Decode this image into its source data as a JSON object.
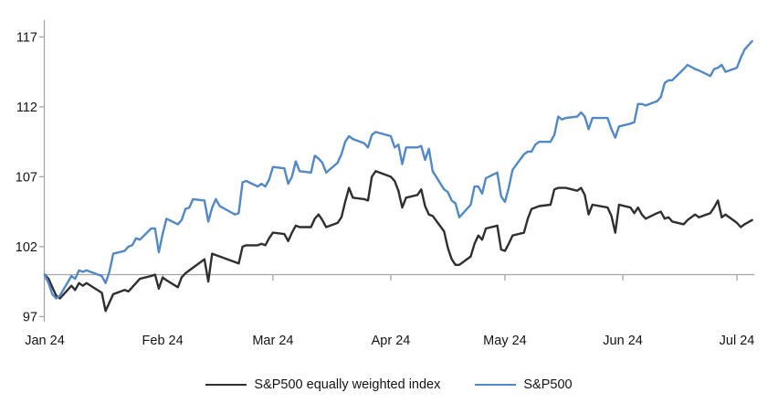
{
  "chart_data": {
    "type": "line",
    "legend_position": "bottom",
    "x_axis": {
      "tick_labels": [
        "Jan 24",
        "Feb 24",
        "Mar 24",
        "Apr 24",
        "May 24",
        "Jun 24",
        "Jul 24"
      ],
      "tick_dates": [
        "2024-01-01",
        "2024-02-01",
        "2024-03-01",
        "2024-04-01",
        "2024-05-01",
        "2024-06-01",
        "2024-07-01"
      ]
    },
    "y_axis": {
      "ticks": [
        97,
        102,
        107,
        112,
        117
      ],
      "min": 97,
      "max": 118,
      "baseline": 100
    },
    "dates": [
      "2024-01-01",
      "2024-01-02",
      "2024-01-03",
      "2024-01-04",
      "2024-01-05",
      "2024-01-08",
      "2024-01-09",
      "2024-01-10",
      "2024-01-11",
      "2024-01-12",
      "2024-01-16",
      "2024-01-17",
      "2024-01-18",
      "2024-01-19",
      "2024-01-22",
      "2024-01-23",
      "2024-01-24",
      "2024-01-25",
      "2024-01-26",
      "2024-01-29",
      "2024-01-30",
      "2024-01-31",
      "2024-02-01",
      "2024-02-02",
      "2024-02-05",
      "2024-02-06",
      "2024-02-07",
      "2024-02-08",
      "2024-02-09",
      "2024-02-12",
      "2024-02-13",
      "2024-02-14",
      "2024-02-15",
      "2024-02-16",
      "2024-02-20",
      "2024-02-21",
      "2024-02-22",
      "2024-02-23",
      "2024-02-26",
      "2024-02-27",
      "2024-02-28",
      "2024-02-29",
      "2024-03-01",
      "2024-03-04",
      "2024-03-05",
      "2024-03-06",
      "2024-03-07",
      "2024-03-08",
      "2024-03-11",
      "2024-03-12",
      "2024-03-13",
      "2024-03-14",
      "2024-03-15",
      "2024-03-18",
      "2024-03-19",
      "2024-03-20",
      "2024-03-21",
      "2024-03-22",
      "2024-03-25",
      "2024-03-26",
      "2024-03-27",
      "2024-03-28",
      "2024-04-01",
      "2024-04-02",
      "2024-04-03",
      "2024-04-04",
      "2024-04-05",
      "2024-04-08",
      "2024-04-09",
      "2024-04-10",
      "2024-04-11",
      "2024-04-12",
      "2024-04-15",
      "2024-04-16",
      "2024-04-17",
      "2024-04-18",
      "2024-04-19",
      "2024-04-22",
      "2024-04-23",
      "2024-04-24",
      "2024-04-25",
      "2024-04-26",
      "2024-04-29",
      "2024-04-30",
      "2024-05-01",
      "2024-05-02",
      "2024-05-03",
      "2024-05-06",
      "2024-05-07",
      "2024-05-08",
      "2024-05-09",
      "2024-05-10",
      "2024-05-13",
      "2024-05-14",
      "2024-05-15",
      "2024-05-16",
      "2024-05-17",
      "2024-05-20",
      "2024-05-21",
      "2024-05-22",
      "2024-05-23",
      "2024-05-24",
      "2024-05-28",
      "2024-05-29",
      "2024-05-30",
      "2024-05-31",
      "2024-06-03",
      "2024-06-04",
      "2024-06-05",
      "2024-06-06",
      "2024-06-07",
      "2024-06-10",
      "2024-06-11",
      "2024-06-12",
      "2024-06-13",
      "2024-06-14",
      "2024-06-17",
      "2024-06-18",
      "2024-06-20",
      "2024-06-21",
      "2024-06-24",
      "2024-06-25",
      "2024-06-26",
      "2024-06-27",
      "2024-06-28",
      "2024-07-01",
      "2024-07-02",
      "2024-07-03",
      "2024-07-05"
    ],
    "series": [
      {
        "name": "S&P500 equally weighted index",
        "color": "#2f2f2f",
        "values": [
          100.0,
          99.7,
          99.1,
          98.5,
          98.3,
          99.2,
          98.9,
          99.4,
          99.2,
          99.4,
          98.7,
          97.4,
          98.0,
          98.6,
          98.9,
          98.8,
          99.1,
          99.4,
          99.7,
          99.9,
          100.0,
          99.0,
          99.8,
          99.6,
          99.1,
          99.8,
          100.1,
          100.3,
          100.5,
          101.1,
          99.5,
          101.5,
          101.4,
          101.3,
          100.9,
          100.8,
          102.0,
          102.1,
          102.1,
          102.2,
          102.1,
          102.6,
          103.0,
          102.9,
          102.4,
          103.0,
          103.5,
          103.4,
          103.4,
          104.0,
          104.3,
          103.9,
          103.4,
          103.7,
          104.1,
          105.2,
          106.2,
          105.5,
          105.4,
          105.3,
          107.0,
          107.4,
          107.0,
          106.7,
          106.0,
          104.8,
          105.5,
          105.7,
          106.1,
          104.9,
          104.3,
          104.2,
          103.1,
          101.9,
          101.1,
          100.7,
          100.7,
          101.3,
          102.2,
          102.8,
          102.5,
          103.3,
          103.5,
          101.8,
          101.7,
          102.2,
          102.8,
          103.0,
          104.0,
          104.7,
          104.8,
          104.9,
          105.0,
          106.1,
          106.2,
          106.2,
          106.2,
          106.0,
          106.2,
          105.7,
          104.3,
          105.0,
          104.8,
          104.2,
          103.0,
          105.0,
          104.8,
          104.4,
          104.8,
          104.3,
          104.0,
          104.4,
          104.5,
          104.0,
          104.1,
          103.8,
          103.6,
          103.9,
          104.3,
          104.1,
          104.4,
          104.8,
          105.3,
          104.1,
          104.3,
          103.7,
          103.4,
          103.6,
          103.9
        ]
      },
      {
        "name": "S&P500",
        "color": "#5288c6",
        "values": [
          100.0,
          99.4,
          98.6,
          98.3,
          98.5,
          99.9,
          99.7,
          100.3,
          100.2,
          100.3,
          99.9,
          99.4,
          100.2,
          101.5,
          101.7,
          102.0,
          102.1,
          102.6,
          102.5,
          103.3,
          103.3,
          101.6,
          102.9,
          104.0,
          103.6,
          103.9,
          104.7,
          104.8,
          105.4,
          105.3,
          103.8,
          104.8,
          105.4,
          104.9,
          104.3,
          104.4,
          106.6,
          106.7,
          106.3,
          106.5,
          106.3,
          106.8,
          107.7,
          107.6,
          106.5,
          107.0,
          108.1,
          107.4,
          107.3,
          108.5,
          108.3,
          108.0,
          107.3,
          108.0,
          108.6,
          109.5,
          109.9,
          109.7,
          109.4,
          109.1,
          110.0,
          110.2,
          109.9,
          109.1,
          109.3,
          107.9,
          109.1,
          109.1,
          109.2,
          108.2,
          109.0,
          107.4,
          106.1,
          105.9,
          105.3,
          105.1,
          104.1,
          105.0,
          106.3,
          106.3,
          105.8,
          106.9,
          107.3,
          105.6,
          105.2,
          106.2,
          107.5,
          108.6,
          108.8,
          108.8,
          109.3,
          109.5,
          109.5,
          110.0,
          111.3,
          111.1,
          111.2,
          111.3,
          111.6,
          111.3,
          110.4,
          111.2,
          111.2,
          110.4,
          109.8,
          110.6,
          110.8,
          110.9,
          112.2,
          112.2,
          112.1,
          112.4,
          112.7,
          113.7,
          113.9,
          113.9,
          114.7,
          115.0,
          114.7,
          114.6,
          114.2,
          114.7,
          114.8,
          115.0,
          114.5,
          114.8,
          115.5,
          116.1,
          116.7
        ]
      }
    ]
  },
  "colors": {
    "axis": "#a6a6a6",
    "text": "#141414",
    "background": "#ffffff"
  }
}
